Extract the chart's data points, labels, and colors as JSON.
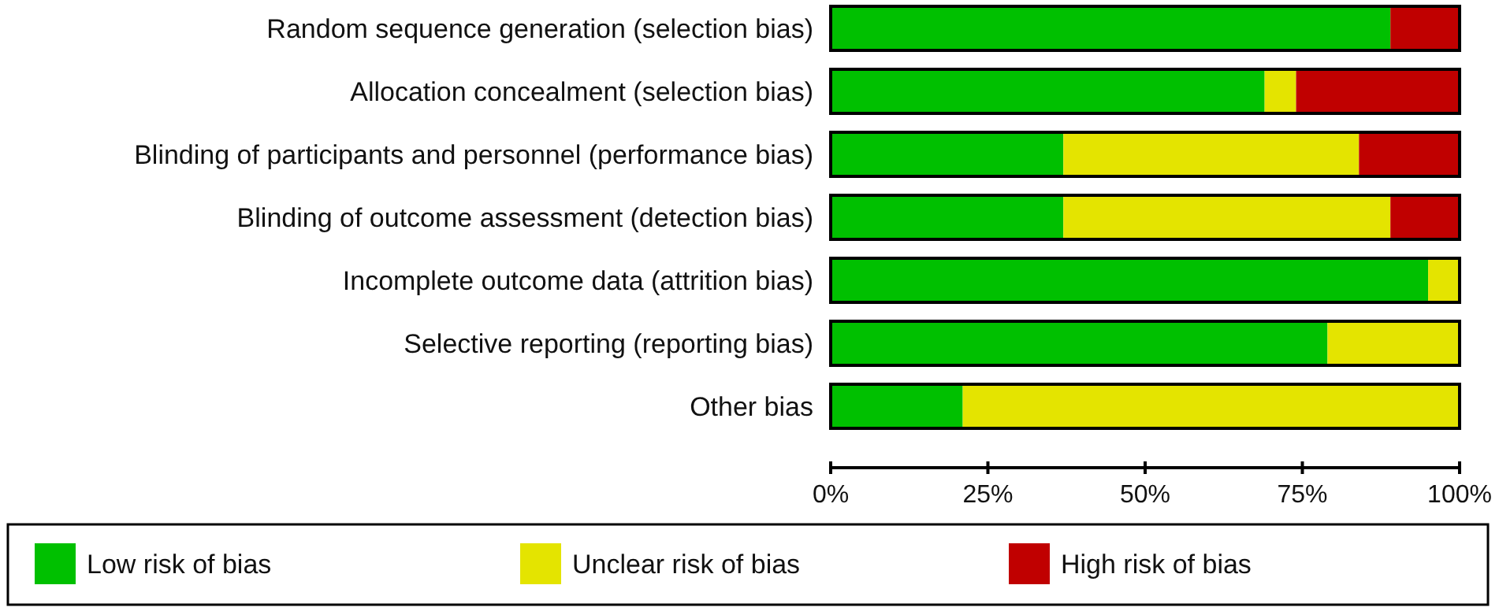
{
  "chart_data": {
    "type": "bar",
    "orientation": "horizontal",
    "stacked": true,
    "categories": [
      "Random sequence generation (selection bias)",
      "Allocation concealment (selection bias)",
      "Blinding of participants and personnel (performance bias)",
      "Blinding of outcome assessment (detection bias)",
      "Incomplete outcome data (attrition bias)",
      "Selective reporting (reporting bias)",
      "Other bias"
    ],
    "series": [
      {
        "name": "Low risk of bias",
        "color": "#00c000",
        "values": [
          89,
          69,
          37,
          37,
          95,
          79,
          21
        ]
      },
      {
        "name": "Unclear risk of bias",
        "color": "#e4e400",
        "values": [
          0,
          5,
          47,
          52,
          5,
          21,
          79
        ]
      },
      {
        "name": "High risk of bias",
        "color": "#c00000",
        "values": [
          11,
          26,
          16,
          11,
          0,
          0,
          0
        ]
      }
    ],
    "xlim": [
      0,
      100
    ],
    "xticks": [
      {
        "value": 0,
        "label": "0%"
      },
      {
        "value": 25,
        "label": "25%"
      },
      {
        "value": 50,
        "label": "50%"
      },
      {
        "value": 75,
        "label": "75%"
      },
      {
        "value": 100,
        "label": "100%"
      }
    ],
    "grid": false,
    "legend": "bottom"
  }
}
